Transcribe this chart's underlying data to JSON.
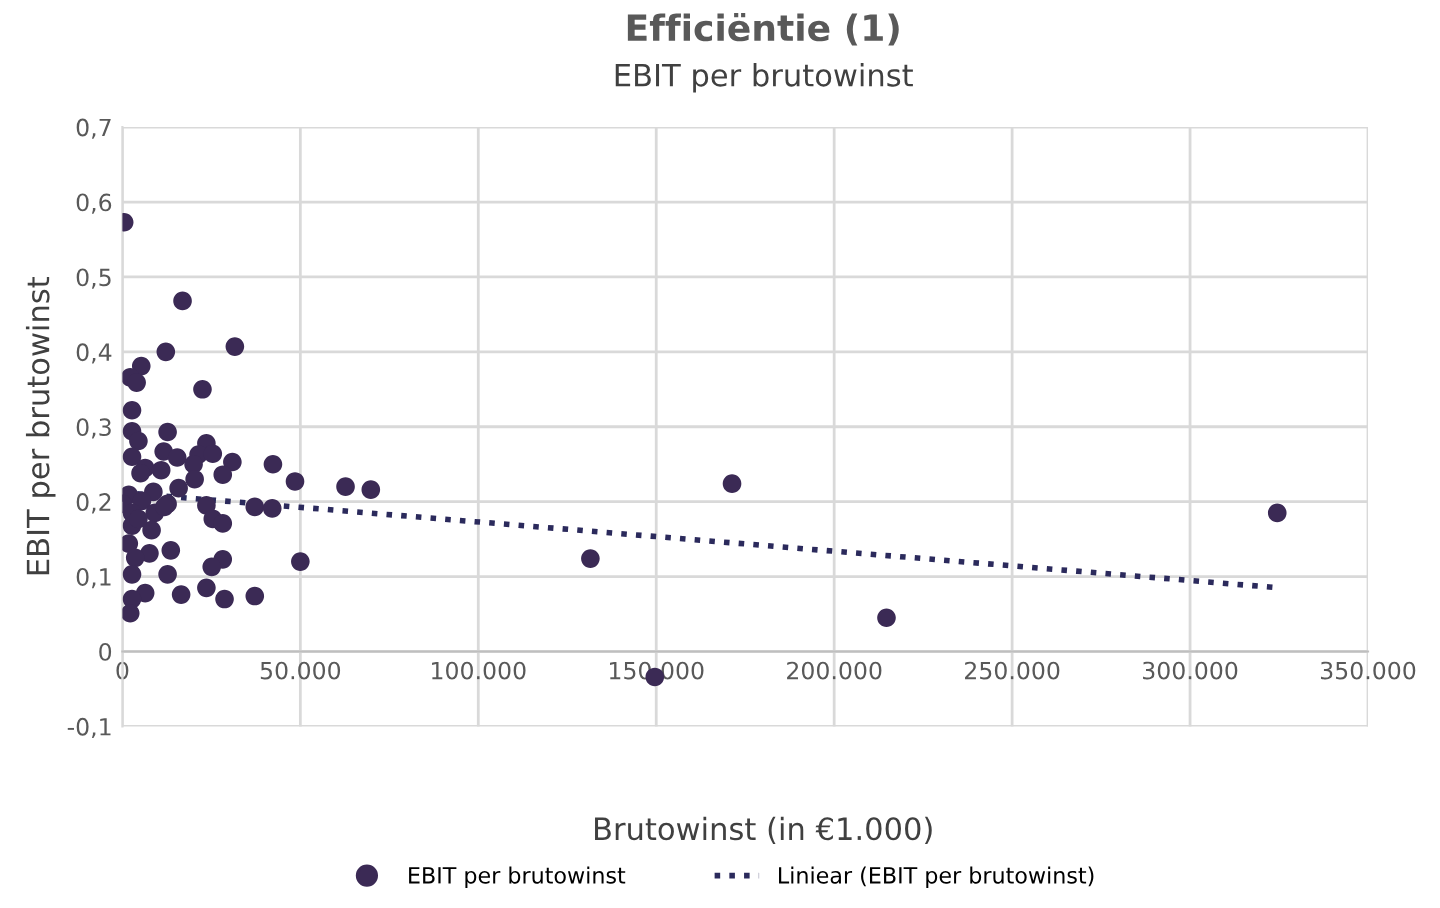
{
  "chart_data": {
    "type": "scatter",
    "title": "Efficiëntie (1)",
    "subtitle": "EBIT per brutowinst",
    "xlabel": "Brutowinst (in €1.000)",
    "ylabel": "EBIT per brutowinst",
    "series": [
      {
        "name": "EBIT per brutowinst",
        "color": "#3b2a55",
        "marker": "circle",
        "x": [
          500,
          16900,
          31600,
          12200,
          5300,
          2200,
          4000,
          22500,
          2700,
          2700,
          12700,
          4500,
          23600,
          11600,
          15400,
          2700,
          21400,
          25400,
          30900,
          42300,
          6400,
          10900,
          20000,
          5100,
          28200,
          20300,
          48500,
          62700,
          69800,
          15800,
          1800,
          8700,
          12700,
          5500,
          0,
          23600,
          37200,
          42100,
          2700,
          9100,
          25400,
          28200,
          2700,
          8200,
          1800,
          13600,
          7600,
          3600,
          28200,
          25100,
          50000,
          2700,
          12700,
          23600,
          6400,
          16500,
          37200,
          28700,
          2700,
          2200,
          4500,
          11800,
          131500,
          149600,
          171300,
          214700,
          324500
        ],
        "values": [
          0.573,
          0.468,
          0.407,
          0.4,
          0.381,
          0.366,
          0.359,
          0.35,
          0.322,
          0.294,
          0.293,
          0.281,
          0.278,
          0.267,
          0.259,
          0.26,
          0.263,
          0.264,
          0.253,
          0.25,
          0.245,
          0.242,
          0.25,
          0.238,
          0.236,
          0.23,
          0.227,
          0.22,
          0.216,
          0.218,
          0.209,
          0.213,
          0.197,
          0.201,
          0.197,
          0.195,
          0.193,
          0.191,
          0.185,
          0.185,
          0.177,
          0.171,
          0.168,
          0.162,
          0.144,
          0.135,
          0.131,
          0.125,
          0.123,
          0.113,
          0.12,
          0.103,
          0.103,
          0.085,
          0.078,
          0.076,
          0.074,
          0.07,
          0.07,
          0.051,
          0.177,
          0.193,
          0.124,
          -0.034,
          0.224,
          0.045,
          0.185
        ]
      },
      {
        "name": "Liniear (EBIT per brutowinst)",
        "type": "line",
        "color": "#2b2a5c",
        "line_style": "dotted",
        "marker": "none",
        "x": [
          0,
          325000
        ],
        "values": [
          0.212,
          0.085
        ]
      }
    ],
    "xlim": [
      0,
      350000
    ],
    "ylim": [
      -0.1,
      0.7
    ],
    "xticks": [
      0,
      {
        "value": 50000,
        "label": "50.000"
      },
      {
        "value": 100000,
        "label": "100.000"
      },
      {
        "value": 150000,
        "label": "150.000"
      },
      {
        "value": 200000,
        "label": "200.000"
      },
      {
        "value": 250000,
        "label": "250.000"
      },
      {
        "value": 300000,
        "label": "300.000"
      },
      {
        "value": 350000,
        "label": "350.000"
      }
    ],
    "yticks": [
      {
        "value": -0.1,
        "label": "-0,1"
      },
      0,
      {
        "value": 0.1,
        "label": "0,1"
      },
      {
        "value": 0.2,
        "label": "0,2"
      },
      {
        "value": 0.3,
        "label": "0,3"
      },
      {
        "value": 0.4,
        "label": "0,4"
      },
      {
        "value": 0.5,
        "label": "0,5"
      },
      {
        "value": 0.6,
        "label": "0,6"
      },
      {
        "value": 0.7,
        "label": "0,7"
      }
    ],
    "grid": true,
    "legend": "bottom"
  }
}
